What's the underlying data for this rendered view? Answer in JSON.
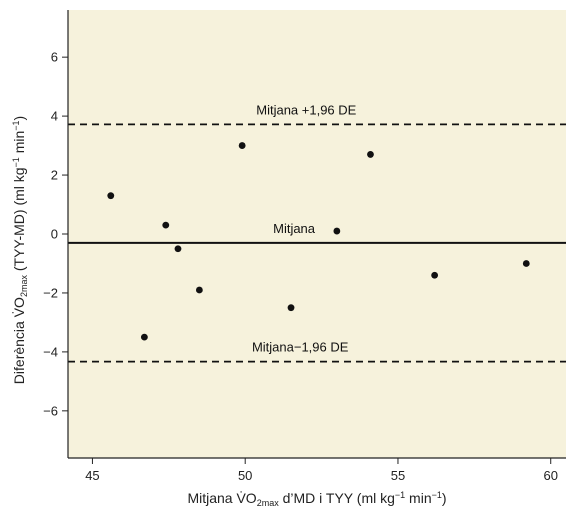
{
  "chart_data": {
    "type": "scatter",
    "plot_background": "#f6f2dc",
    "point_color": "#111111",
    "xlim": [
      44.2,
      60.5
    ],
    "ylim": [
      -7.6,
      7.6
    ],
    "xticks": [
      45,
      50,
      55,
      60
    ],
    "yticks": [
      -6,
      -4,
      -2,
      0,
      2,
      4,
      6
    ],
    "xlabel": {
      "pre": "Mitjana V̇O",
      "sub": "2max",
      "mid": " d’MD i TYY (ml kg",
      "sup1": "−1",
      "mid2": " min",
      "sup2": "−1",
      "post": ")"
    },
    "ylabel": {
      "pre": "Diferència V̇O",
      "sub": "2max",
      "mid": " (TYY-MD) (ml kg",
      "sup1": "−1",
      "mid2": " min",
      "sup2": "−1",
      "post": ")"
    },
    "points": [
      {
        "x": 45.6,
        "y": 1.3
      },
      {
        "x": 46.7,
        "y": -3.5
      },
      {
        "x": 47.4,
        "y": 0.3
      },
      {
        "x": 47.8,
        "y": -0.5
      },
      {
        "x": 48.5,
        "y": -1.9
      },
      {
        "x": 49.9,
        "y": 3.0
      },
      {
        "x": 51.5,
        "y": -2.5
      },
      {
        "x": 53.0,
        "y": 0.1
      },
      {
        "x": 54.1,
        "y": 2.7
      },
      {
        "x": 56.2,
        "y": -1.4
      },
      {
        "x": 59.2,
        "y": -1.0
      }
    ],
    "reference_lines": [
      {
        "name": "mean-line",
        "y": -0.3,
        "style": "solid",
        "label": "Mitjana",
        "label_x": 51.6,
        "label_dy": 10
      },
      {
        "name": "upper-limit-line",
        "y": 3.72,
        "style": "dashed",
        "label": "Mitjana +1,96 DE",
        "label_x": 52.0,
        "label_dy": 10
      },
      {
        "name": "lower-limit-line",
        "y": -4.33,
        "style": "dashed",
        "label": "Mitjana−1,96 DE",
        "label_x": 51.8,
        "label_dy": 10
      }
    ]
  }
}
